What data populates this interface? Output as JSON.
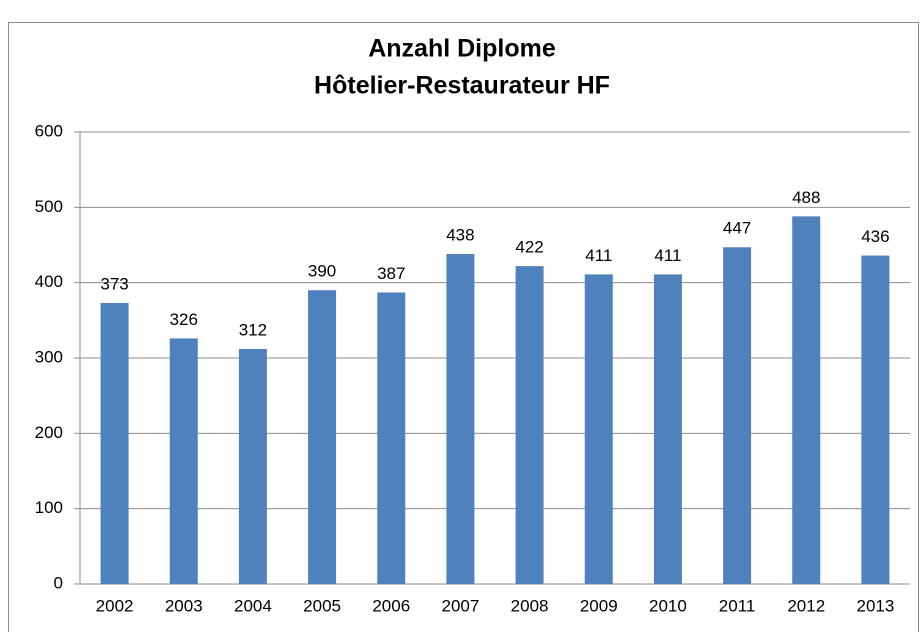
{
  "chart_data": {
    "type": "bar",
    "title": [
      "Anzahl Diplome",
      "Hôtelier-Restaurateur HF"
    ],
    "categories": [
      "2002",
      "2003",
      "2004",
      "2005",
      "2006",
      "2007",
      "2008",
      "2009",
      "2010",
      "2011",
      "2012",
      "2013"
    ],
    "values": [
      373,
      326,
      312,
      390,
      387,
      438,
      422,
      411,
      411,
      447,
      488,
      436
    ],
    "color": "#4f81bd",
    "ylim": [
      0,
      600
    ],
    "yticks": [
      0,
      100,
      200,
      300,
      400,
      500,
      600
    ],
    "grid": true
  }
}
